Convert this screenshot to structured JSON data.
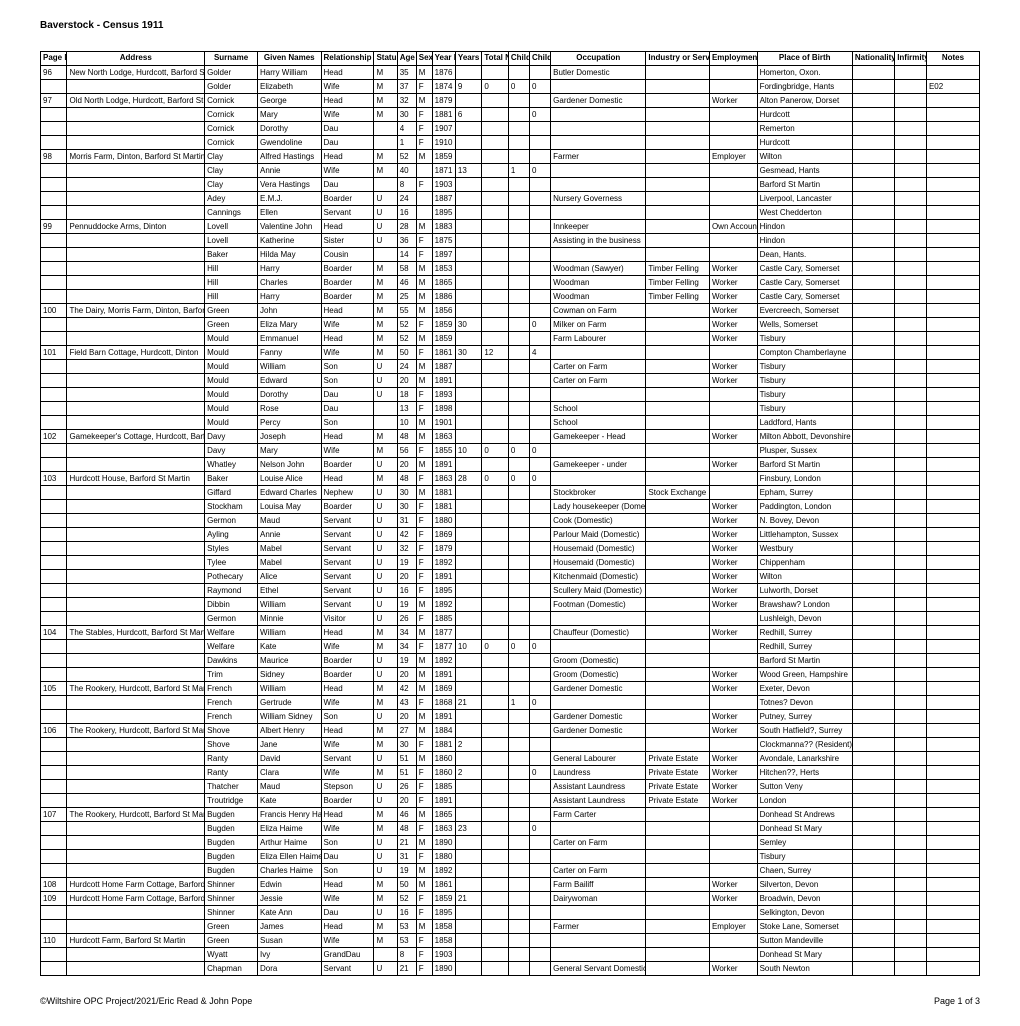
{
  "doc": {
    "title": "Baverstock - Census 1911",
    "footer_left": "©Wiltshire OPC Project/2021/Eric Read & John Pope",
    "footer_right": "Page 1 of 3"
  },
  "headers": [
    "Page Number",
    "Address",
    "Surname",
    "Given Names",
    "Relationship to Head",
    "Status",
    "Age",
    "Sex",
    "Year Born",
    "Years Married",
    "Total No Children",
    "Children Living",
    "Children Died",
    "Occupation",
    "Industry or Service",
    "Employment Status",
    "Place of Birth",
    "Nationality if not British",
    "Infirmity",
    "Notes"
  ],
  "rows": [
    [
      "96",
      "New North Lodge, Hurdcott, Barford St Martin",
      "Golder",
      "Harry William",
      "Head",
      "M",
      "35",
      "M",
      "1876",
      "",
      "",
      "",
      "",
      "Butler Domestic",
      "",
      "",
      "Homerton, Oxon.",
      "",
      "",
      ""
    ],
    [
      "",
      "",
      "Golder",
      "Elizabeth",
      "Wife",
      "M",
      "37",
      "F",
      "1874",
      "9",
      "0",
      "0",
      "0",
      "",
      "",
      "",
      "Fordingbridge, Hants",
      "",
      "",
      "E02"
    ],
    [
      "97",
      "Old North Lodge, Hurdcott, Barford St Martin",
      "Cornick",
      "George",
      "Head",
      "M",
      "32",
      "M",
      "1879",
      "",
      "",
      "",
      "",
      "Gardener Domestic",
      "",
      "Worker",
      "Alton Panerow, Dorset",
      "",
      "",
      ""
    ],
    [
      "",
      "",
      "Cornick",
      "Mary",
      "Wife",
      "M",
      "30",
      "F",
      "1881",
      "6",
      "",
      "",
      "0",
      "",
      "",
      "",
      "Hurdcott",
      "",
      "",
      ""
    ],
    [
      "",
      "",
      "Cornick",
      "Dorothy",
      "Dau",
      "",
      "4",
      "F",
      "1907",
      "",
      "",
      "",
      "",
      "",
      "",
      "",
      "Remerton",
      "",
      "",
      ""
    ],
    [
      "",
      "",
      "Cornick",
      "Gwendoline",
      "Dau",
      "",
      "1",
      "F",
      "1910",
      "",
      "",
      "",
      "",
      "",
      "",
      "",
      "Hurdcott",
      "",
      "",
      ""
    ],
    [
      "98",
      "Morris Farm, Dinton, Barford St Martin",
      "Clay",
      "Alfred Hastings",
      "Head",
      "M",
      "52",
      "M",
      "1859",
      "",
      "",
      "",
      "",
      "Farmer",
      "",
      "Employer",
      "Wilton",
      "",
      "",
      ""
    ],
    [
      "",
      "",
      "Clay",
      "Annie",
      "Wife",
      "M",
      "40",
      "",
      "1871",
      "13",
      "",
      "1",
      "0",
      "",
      "",
      "",
      "Gesmead, Hants",
      "",
      "",
      ""
    ],
    [
      "",
      "",
      "Clay",
      "Vera Hastings",
      "Dau",
      "",
      "8",
      "F",
      "1903",
      "",
      "",
      "",
      "",
      "",
      "",
      "",
      "Barford St Martin",
      "",
      "",
      ""
    ],
    [
      "",
      "",
      "Adey",
      "E.M.J.",
      "Boarder",
      "U",
      "24",
      "",
      "1887",
      "",
      "",
      "",
      "",
      "Nursery Governess",
      "",
      "",
      "Liverpool, Lancaster",
      "",
      "",
      ""
    ],
    [
      "",
      "",
      "Cannings",
      "Ellen",
      "Servant",
      "U",
      "16",
      "",
      "1895",
      "",
      "",
      "",
      "",
      "",
      "",
      "",
      "West Chedderton",
      "",
      "",
      ""
    ],
    [
      "99",
      "Pennuddocke Arms, Dinton",
      "Lovell",
      "Valentine John",
      "Head",
      "U",
      "28",
      "M",
      "1883",
      "",
      "",
      "",
      "",
      "Innkeeper",
      "",
      "Own Account",
      "Hindon",
      "",
      "",
      ""
    ],
    [
      "",
      "",
      "Lovell",
      "Katherine",
      "Sister",
      "U",
      "36",
      "F",
      "1875",
      "",
      "",
      "",
      "",
      "Assisting in the business",
      "",
      "",
      "Hindon",
      "",
      "",
      ""
    ],
    [
      "",
      "",
      "Baker",
      "Hilda May",
      "Cousin",
      "",
      "14",
      "F",
      "1897",
      "",
      "",
      "",
      "",
      "",
      "",
      "",
      "Dean, Hants.",
      "",
      "",
      ""
    ],
    [
      "",
      "",
      "Hill",
      "Harry",
      "Boarder",
      "M",
      "58",
      "M",
      "1853",
      "",
      "",
      "",
      "",
      "Woodman (Sawyer)",
      "Timber Felling",
      "Worker",
      "Castle Cary, Somerset",
      "",
      "",
      ""
    ],
    [
      "",
      "",
      "Hill",
      "Charles",
      "Boarder",
      "M",
      "46",
      "M",
      "1865",
      "",
      "",
      "",
      "",
      "Woodman",
      "Timber Felling",
      "Worker",
      "Castle Cary, Somerset",
      "",
      "",
      ""
    ],
    [
      "",
      "",
      "Hill",
      "Harry",
      "Boarder",
      "M",
      "25",
      "M",
      "1886",
      "",
      "",
      "",
      "",
      "Woodman",
      "Timber Felling",
      "Worker",
      "Castle Cary, Somerset",
      "",
      "",
      ""
    ],
    [
      "100",
      "The Dairy, Morris Farm, Dinton, Barford St Martin",
      "Green",
      "John",
      "Head",
      "M",
      "55",
      "M",
      "1856",
      "",
      "",
      "",
      "",
      "Cowman on Farm",
      "",
      "Worker",
      "Evercreech, Somerset",
      "",
      "",
      ""
    ],
    [
      "",
      "",
      "Green",
      "Eliza Mary",
      "Wife",
      "M",
      "52",
      "F",
      "1859",
      "30",
      "",
      "",
      "0",
      "Milker on Farm",
      "",
      "Worker",
      "Wells, Somerset",
      "",
      "",
      ""
    ],
    [
      "",
      "",
      "Mould",
      "Emmanuel",
      "Head",
      "M",
      "52",
      "M",
      "1859",
      "",
      "",
      "",
      "",
      "Farm Labourer",
      "",
      "Worker",
      "Tisbury",
      "",
      "",
      ""
    ],
    [
      "101",
      "Field Barn Cottage, Hurdcott, Dinton",
      "Mould",
      "Fanny",
      "Wife",
      "M",
      "50",
      "F",
      "1861",
      "30",
      "12",
      "",
      "4",
      "",
      "",
      "",
      "Compton Chamberlayne",
      "",
      "",
      ""
    ],
    [
      "",
      "",
      "Mould",
      "William",
      "Son",
      "U",
      "24",
      "M",
      "1887",
      "",
      "",
      "",
      "",
      "Carter on Farm",
      "",
      "Worker",
      "Tisbury",
      "",
      "",
      ""
    ],
    [
      "",
      "",
      "Mould",
      "Edward",
      "Son",
      "U",
      "20",
      "M",
      "1891",
      "",
      "",
      "",
      "",
      "Carter on Farm",
      "",
      "Worker",
      "Tisbury",
      "",
      "",
      ""
    ],
    [
      "",
      "",
      "Mould",
      "Dorothy",
      "Dau",
      "U",
      "18",
      "F",
      "1893",
      "",
      "",
      "",
      "",
      "",
      "",
      "",
      "Tisbury",
      "",
      "",
      ""
    ],
    [
      "",
      "",
      "Mould",
      "Rose",
      "Dau",
      "",
      "13",
      "F",
      "1898",
      "",
      "",
      "",
      "",
      "School",
      "",
      "",
      "Tisbury",
      "",
      "",
      ""
    ],
    [
      "",
      "",
      "Mould",
      "Percy",
      "Son",
      "",
      "10",
      "M",
      "1901",
      "",
      "",
      "",
      "",
      "School",
      "",
      "",
      "Laddford, Hants",
      "",
      "",
      ""
    ],
    [
      "102",
      "Gamekeeper's Cottage, Hurdcott, Barford St Martin",
      "Davy",
      "Joseph",
      "Head",
      "M",
      "48",
      "M",
      "1863",
      "",
      "",
      "",
      "",
      "Gamekeeper - Head",
      "",
      "Worker",
      "Milton Abbott, Devonshire",
      "",
      "",
      ""
    ],
    [
      "",
      "",
      "Davy",
      "Mary",
      "Wife",
      "M",
      "56",
      "F",
      "1855",
      "10",
      "0",
      "0",
      "0",
      "",
      "",
      "",
      "Plusper, Sussex",
      "",
      "",
      ""
    ],
    [
      "",
      "",
      "Whatley",
      "Nelson John",
      "Boarder",
      "U",
      "20",
      "M",
      "1891",
      "",
      "",
      "",
      "",
      "Gamekeeper - under",
      "",
      "Worker",
      "Barford St Martin",
      "",
      "",
      ""
    ],
    [
      "103",
      "Hurdcott House, Barford St Martin",
      "Baker",
      "Louise Alice",
      "Head",
      "M",
      "48",
      "F",
      "1863",
      "28",
      "0",
      "0",
      "0",
      "",
      "",
      "",
      "Finsbury, London",
      "",
      "",
      ""
    ],
    [
      "",
      "",
      "Giffard",
      "Edward Charles",
      "Nephew",
      "U",
      "30",
      "M",
      "1881",
      "",
      "",
      "",
      "",
      "Stockbroker",
      "Stock Exchange",
      "",
      "Epham, Surrey",
      "",
      "",
      ""
    ],
    [
      "",
      "",
      "Stockham",
      "Louisa May",
      "Boarder",
      "U",
      "30",
      "F",
      "1881",
      "",
      "",
      "",
      "",
      "Lady housekeeper (Domestic)",
      "",
      "Worker",
      "Paddington, London",
      "",
      "",
      ""
    ],
    [
      "",
      "",
      "Germon",
      "Maud",
      "Servant",
      "U",
      "31",
      "F",
      "1880",
      "",
      "",
      "",
      "",
      "Cook (Domestic)",
      "",
      "Worker",
      "N. Bovey, Devon",
      "",
      "",
      ""
    ],
    [
      "",
      "",
      "Ayling",
      "Annie",
      "Servant",
      "U",
      "42",
      "F",
      "1869",
      "",
      "",
      "",
      "",
      "Parlour Maid (Domestic)",
      "",
      "Worker",
      "Littlehampton, Sussex",
      "",
      "",
      ""
    ],
    [
      "",
      "",
      "Styles",
      "Mabel",
      "Servant",
      "U",
      "32",
      "F",
      "1879",
      "",
      "",
      "",
      "",
      "Housemaid (Domestic)",
      "",
      "Worker",
      "Westbury",
      "",
      "",
      ""
    ],
    [
      "",
      "",
      "Tylee",
      "Mabel",
      "Servant",
      "U",
      "19",
      "F",
      "1892",
      "",
      "",
      "",
      "",
      "Housemaid (Domestic)",
      "",
      "Worker",
      "Chippenham",
      "",
      "",
      ""
    ],
    [
      "",
      "",
      "Pothecary",
      "Alice",
      "Servant",
      "U",
      "20",
      "F",
      "1891",
      "",
      "",
      "",
      "",
      "Kitchenmaid (Domestic)",
      "",
      "Worker",
      "Wilton",
      "",
      "",
      ""
    ],
    [
      "",
      "",
      "Raymond",
      "Ethel",
      "Servant",
      "U",
      "16",
      "F",
      "1895",
      "",
      "",
      "",
      "",
      "Scullery Maid (Domestic)",
      "",
      "Worker",
      "Lulworth, Dorset",
      "",
      "",
      ""
    ],
    [
      "",
      "",
      "Dibbin",
      "William",
      "Servant",
      "U",
      "19",
      "M",
      "1892",
      "",
      "",
      "",
      "",
      "Footman (Domestic)",
      "",
      "Worker",
      "Brawshaw? London",
      "",
      "",
      ""
    ],
    [
      "",
      "",
      "Germon",
      "Minnie",
      "Visitor",
      "U",
      "26",
      "F",
      "1885",
      "",
      "",
      "",
      "",
      "",
      "",
      "",
      "Lushleigh, Devon",
      "",
      "",
      ""
    ],
    [
      "104",
      "The Stables, Hurdcott, Barford St Martin",
      "Welfare",
      "William",
      "Head",
      "M",
      "34",
      "M",
      "1877",
      "",
      "",
      "",
      "",
      "Chauffeur (Domestic)",
      "",
      "Worker",
      "Redhill, Surrey",
      "",
      "",
      ""
    ],
    [
      "",
      "",
      "Welfare",
      "Kate",
      "Wife",
      "M",
      "34",
      "F",
      "1877",
      "10",
      "0",
      "0",
      "0",
      "",
      "",
      "",
      "Redhill, Surrey",
      "",
      "",
      ""
    ],
    [
      "",
      "",
      "Dawkins",
      "Maurice",
      "Boarder",
      "U",
      "19",
      "M",
      "1892",
      "",
      "",
      "",
      "",
      "Groom (Domestic)",
      "",
      "",
      "Barford St Martin",
      "",
      "",
      ""
    ],
    [
      "",
      "",
      "Trim",
      "Sidney",
      "Boarder",
      "U",
      "20",
      "M",
      "1891",
      "",
      "",
      "",
      "",
      "Groom (Domestic)",
      "",
      "Worker",
      "Wood Green, Hampshire",
      "",
      "",
      ""
    ],
    [
      "105",
      "The Rookery, Hurdcott, Barford St Martin",
      "French",
      "William",
      "Head",
      "M",
      "42",
      "M",
      "1869",
      "",
      "",
      "",
      "",
      "Gardener Domestic",
      "",
      "Worker",
      "Exeter, Devon",
      "",
      "",
      ""
    ],
    [
      "",
      "",
      "French",
      "Gertrude",
      "Wife",
      "M",
      "43",
      "F",
      "1868",
      "21",
      "",
      "1",
      "0",
      "",
      "",
      "",
      "Totnes? Devon",
      "",
      "",
      ""
    ],
    [
      "",
      "",
      "French",
      "William Sidney",
      "Son",
      "U",
      "20",
      "M",
      "1891",
      "",
      "",
      "",
      "",
      "Gardener Domestic",
      "",
      "Worker",
      "Putney, Surrey",
      "",
      "",
      ""
    ],
    [
      "106",
      "The Rookery, Hurdcott, Barford St Martin",
      "Shove",
      "Albert Henry",
      "Head",
      "M",
      "27",
      "M",
      "1884",
      "",
      "",
      "",
      "",
      "Gardener Domestic",
      "",
      "Worker",
      "South Hatfield?, Surrey",
      "",
      "",
      ""
    ],
    [
      "",
      "",
      "Shove",
      "Jane",
      "Wife",
      "M",
      "30",
      "F",
      "1881",
      "2",
      "",
      "",
      "",
      "",
      "",
      "",
      "Clockmanna?? (Resident)",
      "",
      "",
      ""
    ],
    [
      "",
      "",
      "Ranty",
      "David",
      "Servant",
      "U",
      "51",
      "M",
      "1860",
      "",
      "",
      "",
      "",
      "General Labourer",
      "Private Estate",
      "Worker",
      "Avondale, Lanarkshire",
      "",
      "",
      ""
    ],
    [
      "",
      "",
      "Ranty",
      "Clara",
      "Wife",
      "M",
      "51",
      "F",
      "1860",
      "2",
      "",
      "",
      "0",
      "Laundress",
      "Private Estate",
      "Worker",
      "Hitchen??, Herts",
      "",
      "",
      ""
    ],
    [
      "",
      "",
      "Thatcher",
      "Maud",
      "Stepson",
      "U",
      "26",
      "F",
      "1885",
      "",
      "",
      "",
      "",
      "Assistant Laundress",
      "Private Estate",
      "Worker",
      "Sutton Veny",
      "",
      "",
      ""
    ],
    [
      "",
      "",
      "Troutridge",
      "Kate",
      "Boarder",
      "U",
      "20",
      "F",
      "1891",
      "",
      "",
      "",
      "",
      "Assistant Laundress",
      "Private Estate",
      "Worker",
      "London",
      "",
      "",
      ""
    ],
    [
      "107",
      "The Rookery, Hurdcott, Barford St Martin",
      "Bugden",
      "Francis Henry Haime",
      "Head",
      "M",
      "46",
      "M",
      "1865",
      "",
      "",
      "",
      "",
      "Farm Carter",
      "",
      "",
      "Donhead St Andrews",
      "",
      "",
      ""
    ],
    [
      "",
      "",
      "Bugden",
      "Eliza Haime",
      "Wife",
      "M",
      "48",
      "F",
      "1863",
      "23",
      "",
      "",
      "0",
      "",
      "",
      "",
      "Donhead St Mary",
      "",
      "",
      ""
    ],
    [
      "",
      "",
      "Bugden",
      "Arthur Haime",
      "Son",
      "U",
      "21",
      "M",
      "1890",
      "",
      "",
      "",
      "",
      "Carter on Farm",
      "",
      "",
      "Semley",
      "",
      "",
      ""
    ],
    [
      "",
      "",
      "Bugden",
      "Eliza Ellen Haime",
      "Dau",
      "U",
      "31",
      "F",
      "1880",
      "",
      "",
      "",
      "",
      "",
      "",
      "",
      "Tisbury",
      "",
      "",
      ""
    ],
    [
      "",
      "",
      "Bugden",
      "Charles Haime",
      "Son",
      "U",
      "19",
      "M",
      "1892",
      "",
      "",
      "",
      "",
      "Carter on Farm",
      "",
      "",
      "Chaen, Surrey",
      "",
      "",
      ""
    ],
    [
      "108",
      "Hurdcott Home Farm Cottage, Barford St Martin",
      "Shinner",
      "Edwin",
      "Head",
      "M",
      "50",
      "M",
      "1861",
      "",
      "",
      "",
      "",
      "Farm Bailiff",
      "",
      "Worker",
      "Silverton, Devon",
      "",
      "",
      ""
    ],
    [
      "109",
      "Hurdcott Home Farm Cottage, Barford St Martin",
      "Shinner",
      "Jessie",
      "Wife",
      "M",
      "52",
      "F",
      "1859",
      "21",
      "",
      "",
      "",
      "Dairywoman",
      "",
      "Worker",
      "Broadwin, Devon",
      "",
      "",
      ""
    ],
    [
      "",
      "",
      "Shinner",
      "Kate Ann",
      "Dau",
      "U",
      "16",
      "F",
      "1895",
      "",
      "",
      "",
      "",
      "",
      "",
      "",
      "Selkington, Devon",
      "",
      "",
      ""
    ],
    [
      "",
      "",
      "Green",
      "James",
      "Head",
      "M",
      "53",
      "M",
      "1858",
      "",
      "",
      "",
      "",
      "Farmer",
      "",
      "Employer",
      "Stoke Lane, Somerset",
      "",
      "",
      ""
    ],
    [
      "110",
      "Hurdcott Farm, Barford St Martin",
      "Green",
      "Susan",
      "Wife",
      "M",
      "53",
      "F",
      "1858",
      "",
      "",
      "",
      "",
      "",
      "",
      "",
      "Sutton Mandeville",
      "",
      "",
      ""
    ],
    [
      "",
      "",
      "Wyatt",
      "Ivy",
      "GrandDau",
      "",
      "8",
      "F",
      "1903",
      "",
      "",
      "",
      "",
      "",
      "",
      "",
      "Donhead St Mary",
      "",
      "",
      ""
    ],
    [
      "",
      "",
      "Chapman",
      "Dora",
      "Servant",
      "U",
      "21",
      "F",
      "1890",
      "",
      "",
      "",
      "",
      "General Servant Domestic",
      "",
      "Worker",
      "South Newton",
      "",
      "",
      ""
    ]
  ]
}
